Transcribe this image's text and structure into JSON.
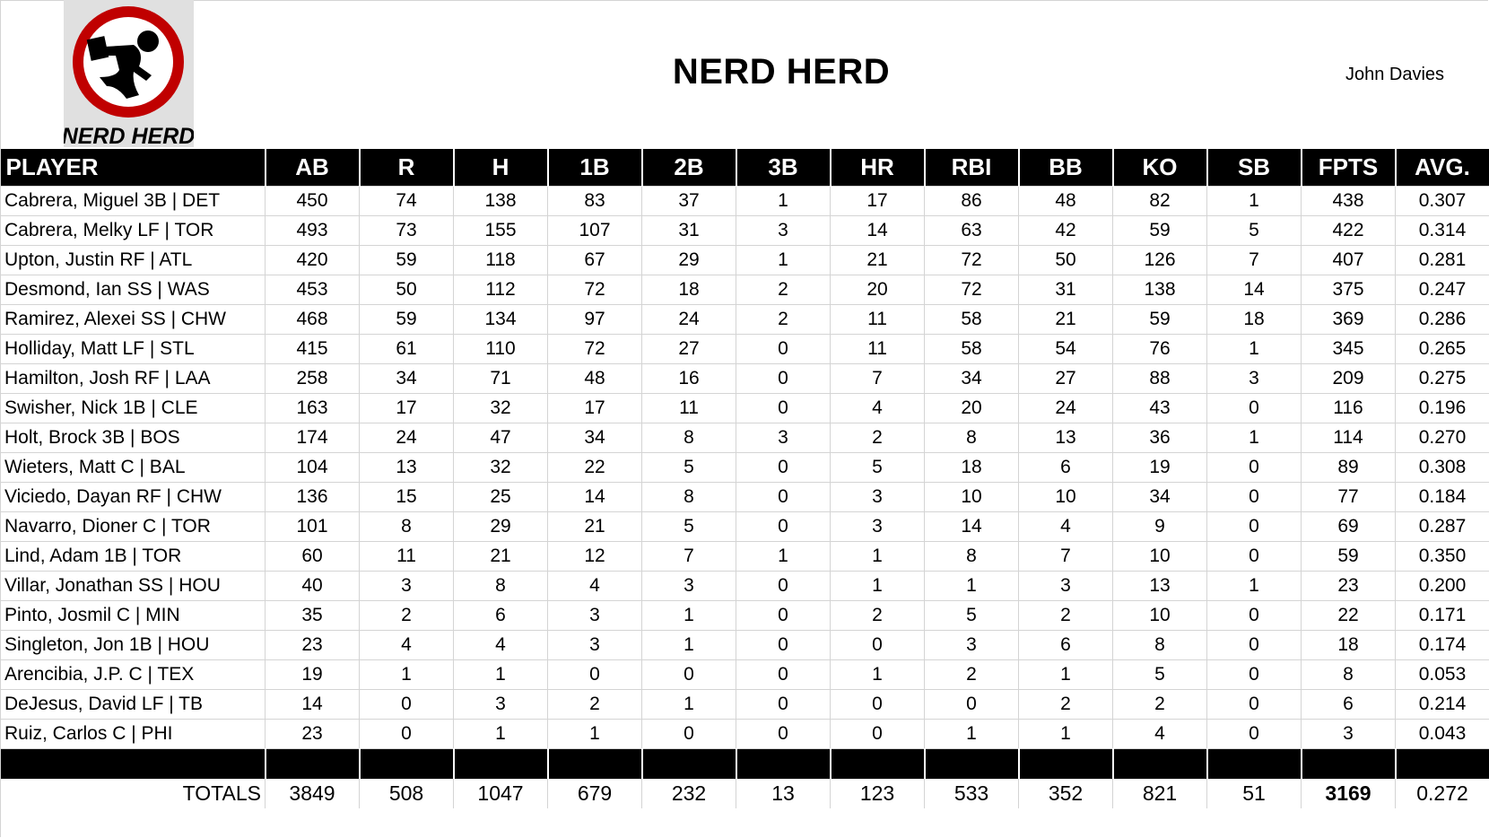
{
  "logo": {
    "text": "NERD HERD",
    "colors": {
      "ring": "#c00000",
      "background": "#e0e0e0",
      "figure": "#000000"
    }
  },
  "header": {
    "title": "NERD HERD",
    "owner": "John Davies"
  },
  "table": {
    "columns": [
      "PLAYER",
      "AB",
      "R",
      "H",
      "1B",
      "2B",
      "3B",
      "HR",
      "RBI",
      "BB",
      "KO",
      "SB",
      "FPTS",
      "AVG."
    ],
    "rows": [
      [
        "Cabrera, Miguel 3B | DET",
        "450",
        "74",
        "138",
        "83",
        "37",
        "1",
        "17",
        "86",
        "48",
        "82",
        "1",
        "438",
        "0.307"
      ],
      [
        "Cabrera, Melky LF | TOR",
        "493",
        "73",
        "155",
        "107",
        "31",
        "3",
        "14",
        "63",
        "42",
        "59",
        "5",
        "422",
        "0.314"
      ],
      [
        "Upton, Justin RF | ATL",
        "420",
        "59",
        "118",
        "67",
        "29",
        "1",
        "21",
        "72",
        "50",
        "126",
        "7",
        "407",
        "0.281"
      ],
      [
        "Desmond, Ian SS | WAS",
        "453",
        "50",
        "112",
        "72",
        "18",
        "2",
        "20",
        "72",
        "31",
        "138",
        "14",
        "375",
        "0.247"
      ],
      [
        "Ramirez, Alexei SS | CHW",
        "468",
        "59",
        "134",
        "97",
        "24",
        "2",
        "11",
        "58",
        "21",
        "59",
        "18",
        "369",
        "0.286"
      ],
      [
        "Holliday, Matt LF | STL",
        "415",
        "61",
        "110",
        "72",
        "27",
        "0",
        "11",
        "58",
        "54",
        "76",
        "1",
        "345",
        "0.265"
      ],
      [
        "Hamilton, Josh RF | LAA",
        "258",
        "34",
        "71",
        "48",
        "16",
        "0",
        "7",
        "34",
        "27",
        "88",
        "3",
        "209",
        "0.275"
      ],
      [
        "Swisher, Nick 1B | CLE",
        "163",
        "17",
        "32",
        "17",
        "11",
        "0",
        "4",
        "20",
        "24",
        "43",
        "0",
        "116",
        "0.196"
      ],
      [
        "Holt, Brock 3B | BOS",
        "174",
        "24",
        "47",
        "34",
        "8",
        "3",
        "2",
        "8",
        "13",
        "36",
        "1",
        "114",
        "0.270"
      ],
      [
        "Wieters, Matt C | BAL",
        "104",
        "13",
        "32",
        "22",
        "5",
        "0",
        "5",
        "18",
        "6",
        "19",
        "0",
        "89",
        "0.308"
      ],
      [
        "Viciedo, Dayan RF | CHW",
        "136",
        "15",
        "25",
        "14",
        "8",
        "0",
        "3",
        "10",
        "10",
        "34",
        "0",
        "77",
        "0.184"
      ],
      [
        "Navarro, Dioner C | TOR",
        "101",
        "8",
        "29",
        "21",
        "5",
        "0",
        "3",
        "14",
        "4",
        "9",
        "0",
        "69",
        "0.287"
      ],
      [
        "Lind, Adam 1B | TOR",
        "60",
        "11",
        "21",
        "12",
        "7",
        "1",
        "1",
        "8",
        "7",
        "10",
        "0",
        "59",
        "0.350"
      ],
      [
        "Villar, Jonathan SS | HOU",
        "40",
        "3",
        "8",
        "4",
        "3",
        "0",
        "1",
        "1",
        "3",
        "13",
        "1",
        "23",
        "0.200"
      ],
      [
        "Pinto, Josmil C | MIN",
        "35",
        "2",
        "6",
        "3",
        "1",
        "0",
        "2",
        "5",
        "2",
        "10",
        "0",
        "22",
        "0.171"
      ],
      [
        "Singleton, Jon 1B | HOU",
        "23",
        "4",
        "4",
        "3",
        "1",
        "0",
        "0",
        "3",
        "6",
        "8",
        "0",
        "18",
        "0.174"
      ],
      [
        "Arencibia, J.P. C | TEX",
        "19",
        "1",
        "1",
        "0",
        "0",
        "0",
        "1",
        "2",
        "1",
        "5",
        "0",
        "8",
        "0.053"
      ],
      [
        "DeJesus, David LF | TB",
        "14",
        "0",
        "3",
        "2",
        "1",
        "0",
        "0",
        "0",
        "2",
        "2",
        "0",
        "6",
        "0.214"
      ],
      [
        "Ruiz, Carlos C | PHI",
        "23",
        "0",
        "1",
        "1",
        "0",
        "0",
        "0",
        "1",
        "1",
        "4",
        "0",
        "3",
        "0.043"
      ]
    ],
    "totals": [
      "TOTALS",
      "3849",
      "508",
      "1047",
      "679",
      "232",
      "13",
      "123",
      "533",
      "352",
      "821",
      "51",
      "3169",
      "0.272"
    ]
  }
}
